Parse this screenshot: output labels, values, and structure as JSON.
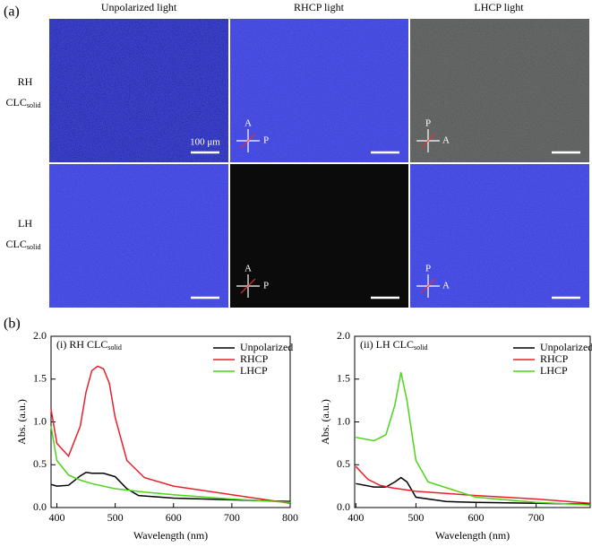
{
  "figure": {
    "part_a_label": "(a)",
    "part_b_label": "(b)",
    "column_headers": [
      "Unpolarized light",
      "RHCP light",
      "LHCP light"
    ],
    "row_labels": [
      {
        "name": "RH",
        "compound": "CLC",
        "subscript": "solid"
      },
      {
        "name": "LH",
        "compound": "CLC",
        "subscript": "solid"
      }
    ],
    "scale_bar_label": "100 μm",
    "analyzer_label": "A",
    "polarizer_label": "P"
  },
  "chart_data": [
    {
      "type": "line",
      "title": "(i) RH CLC",
      "title_subscript": "solid",
      "x_label": "Wavelength (nm)",
      "y_label": "Abs. (a.u.)",
      "xlim": [
        390,
        800
      ],
      "xticks": [
        400,
        500,
        600,
        700,
        800
      ],
      "ylim": [
        0,
        2
      ],
      "yticks": [
        {
          "value": 0,
          "label": "0.0"
        },
        0.5,
        {
          "value": 1,
          "label": "1.0"
        },
        1.5,
        {
          "value": 2,
          "label": "2.0"
        }
      ],
      "legend": "upper right",
      "series": [
        {
          "name": "Unpolarized",
          "color": "#000000",
          "x": [
            390,
            400,
            420,
            440,
            450,
            460,
            480,
            500,
            520,
            540,
            600,
            700,
            800
          ],
          "values": [
            0.27,
            0.25,
            0.26,
            0.37,
            0.41,
            0.4,
            0.4,
            0.36,
            0.22,
            0.14,
            0.11,
            0.09,
            0.07
          ]
        },
        {
          "name": "RHCP",
          "color": "#e8202a",
          "x": [
            390,
            400,
            420,
            440,
            450,
            460,
            470,
            480,
            490,
            500,
            520,
            550,
            600,
            700,
            800
          ],
          "values": [
            1.15,
            0.75,
            0.6,
            0.95,
            1.35,
            1.6,
            1.65,
            1.62,
            1.45,
            1.05,
            0.55,
            0.35,
            0.25,
            0.15,
            0.05
          ]
        },
        {
          "name": "LHCP",
          "color": "#4cd417",
          "x": [
            390,
            400,
            420,
            440,
            460,
            500,
            550,
            600,
            700,
            800
          ],
          "values": [
            0.95,
            0.55,
            0.38,
            0.32,
            0.28,
            0.22,
            0.18,
            0.15,
            0.1,
            0.06
          ]
        }
      ]
    },
    {
      "type": "line",
      "title": "(ii) LH CLC",
      "title_subscript": "solid",
      "x_label": "Wavelength (nm)",
      "y_label": "Abs. (a.u.)",
      "xlim": [
        398,
        790
      ],
      "xticks": [
        400,
        500,
        600,
        700
      ],
      "ylim": [
        0,
        2
      ],
      "yticks": [
        {
          "value": 0,
          "label": "0.0"
        },
        0.5,
        {
          "value": 1,
          "label": "1.0"
        },
        1.5,
        {
          "value": 2,
          "label": "2.0"
        }
      ],
      "legend": "upper right",
      "series": [
        {
          "name": "Unpolarized",
          "color": "#000000",
          "x": [
            400,
            430,
            450,
            465,
            475,
            485,
            500,
            550,
            600,
            700,
            790
          ],
          "values": [
            0.28,
            0.24,
            0.24,
            0.3,
            0.35,
            0.3,
            0.12,
            0.07,
            0.06,
            0.05,
            0.04
          ]
        },
        {
          "name": "RHCP",
          "color": "#e8202a",
          "x": [
            400,
            420,
            440,
            460,
            500,
            600,
            700,
            790
          ],
          "values": [
            0.48,
            0.33,
            0.26,
            0.23,
            0.19,
            0.14,
            0.1,
            0.05
          ]
        },
        {
          "name": "LHCP",
          "color": "#4cd417",
          "x": [
            400,
            430,
            450,
            465,
            475,
            485,
            500,
            520,
            600,
            700,
            790
          ],
          "values": [
            0.82,
            0.78,
            0.85,
            1.2,
            1.58,
            1.25,
            0.55,
            0.3,
            0.12,
            0.06,
            0.03
          ]
        }
      ]
    }
  ]
}
